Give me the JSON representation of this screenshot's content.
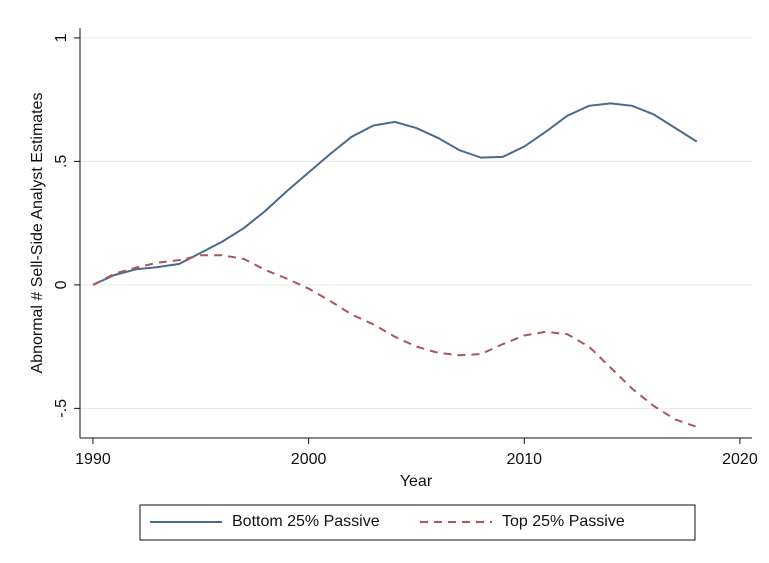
{
  "chart_data": {
    "type": "line",
    "x_label": "Year",
    "y_label": "Abnormal # Sell-Side Analyst Estimates",
    "x": [
      1990,
      1991,
      1992,
      1993,
      1994,
      1995,
      1996,
      1997,
      1998,
      1999,
      2000,
      2001,
      2002,
      2003,
      2004,
      2005,
      2006,
      2007,
      2008,
      2009,
      2010,
      2011,
      2012,
      2013,
      2014,
      2015,
      2016,
      2017,
      2018
    ],
    "series": [
      {
        "name": "Bottom 25% Passive",
        "color": "#4a6a8a",
        "dash": "solid",
        "values": [
          0,
          0.04,
          0.063,
          0.072,
          0.085,
          0.13,
          0.175,
          0.23,
          0.3,
          0.38,
          0.455,
          0.53,
          0.6,
          0.645,
          0.66,
          0.635,
          0.595,
          0.545,
          0.515,
          0.518,
          0.56,
          0.62,
          0.685,
          0.725,
          0.735,
          0.725,
          0.69,
          0.635,
          0.58
        ]
      },
      {
        "name": "Top 25% Passive",
        "color": "#a8575c",
        "dash": "dashed",
        "values": [
          0,
          0.045,
          0.07,
          0.09,
          0.1,
          0.12,
          0.12,
          0.105,
          0.06,
          0.025,
          -0.015,
          -0.065,
          -0.12,
          -0.16,
          -0.21,
          -0.25,
          -0.275,
          -0.285,
          -0.28,
          -0.24,
          -0.205,
          -0.19,
          -0.2,
          -0.25,
          -0.335,
          -0.42,
          -0.49,
          -0.545,
          -0.575
        ]
      }
    ],
    "xlim": [
      1989.4,
      2020.56
    ],
    "xticks": [
      1990,
      2000,
      2010,
      2020
    ],
    "ylim": [
      -0.62,
      1.04
    ],
    "yticks": [
      {
        "value": -0.5,
        "label": "-.5"
      },
      0,
      {
        "value": 0.5,
        "label": ".5"
      },
      1
    ],
    "grid": true,
    "legend": "bottom"
  }
}
